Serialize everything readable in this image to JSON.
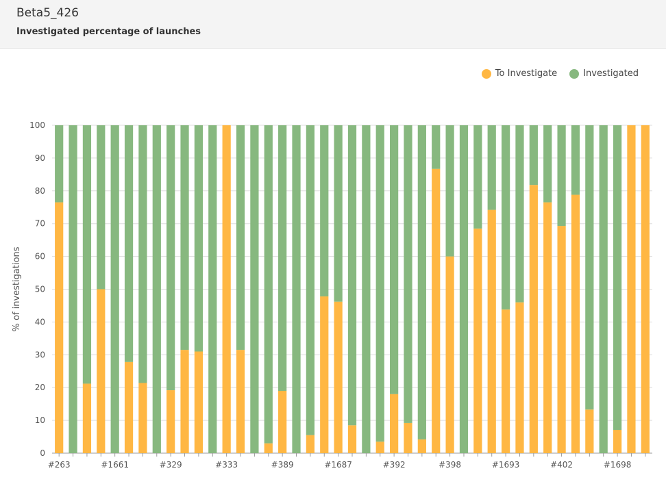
{
  "header": {
    "title": "Beta5_426",
    "subtitle": "Investigated percentage of launches"
  },
  "legend": [
    {
      "label": "To Investigate",
      "color": "#ffb743"
    },
    {
      "label": "Investigated",
      "color": "#87b87f"
    }
  ],
  "chart_data": {
    "type": "bar",
    "stacked": true,
    "ylabel": "% of investigations",
    "ylim": [
      0,
      100
    ],
    "yticks": [
      0,
      10,
      20,
      30,
      40,
      50,
      60,
      70,
      80,
      90,
      100
    ],
    "grid": true,
    "legend_position": "top-right",
    "categories": [
      "#263",
      "",
      "",
      "",
      "#1661",
      "",
      "",
      "",
      "#329",
      "",
      "",
      "",
      "#333",
      "",
      "",
      "",
      "#389",
      "",
      "",
      "",
      "#1687",
      "",
      "",
      "",
      "#392",
      "",
      "",
      "",
      "#398",
      "",
      "",
      "",
      "#1693",
      "",
      "",
      "",
      "#402",
      "",
      "",
      "",
      "#1698",
      "",
      ""
    ],
    "series": [
      {
        "name": "To Investigate",
        "color": "#ffb743",
        "values": [
          76.5,
          0,
          21.2,
          50,
          0,
          27.8,
          21.4,
          0,
          19.2,
          31.5,
          31,
          0,
          100,
          31.5,
          0,
          3,
          19,
          0,
          5.5,
          47.8,
          46.2,
          8.5,
          0,
          3.5,
          18,
          9.2,
          4.2,
          86.7,
          60,
          0,
          68.5,
          74.2,
          43.8,
          46,
          81.8,
          76.5,
          69.3,
          78.8,
          13.3,
          0,
          7.1,
          100,
          100
        ]
      },
      {
        "name": "Investigated",
        "color": "#87b87f",
        "values": [
          23.5,
          100,
          78.8,
          50,
          100,
          72.2,
          78.6,
          100,
          80.8,
          68.5,
          69,
          100,
          0,
          68.5,
          100,
          97,
          81,
          100,
          94.5,
          52.2,
          53.8,
          91.5,
          100,
          96.5,
          82,
          90.8,
          95.8,
          13.3,
          40,
          100,
          31.5,
          25.8,
          56.2,
          54,
          18.2,
          23.5,
          30.7,
          21.2,
          86.7,
          100,
          92.9,
          0,
          0
        ]
      }
    ]
  }
}
